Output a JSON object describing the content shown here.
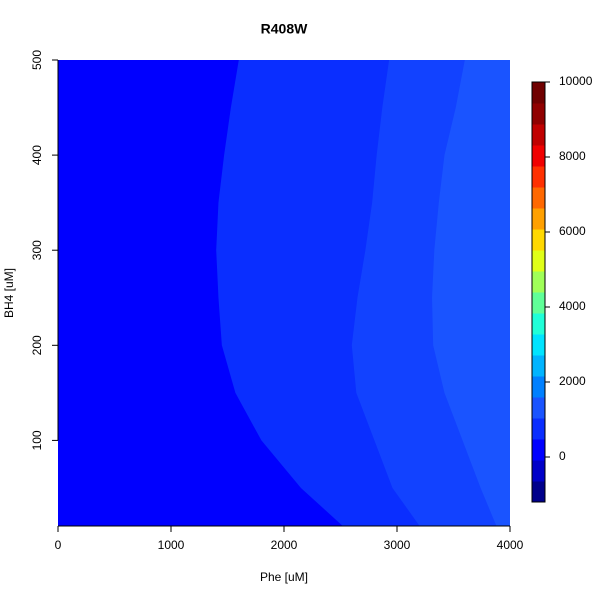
{
  "chart_data": {
    "type": "contour",
    "title": "R408W",
    "xlabel": "Phe [uM]",
    "ylabel": "BH4 [uM]",
    "xlim": [
      0,
      4000
    ],
    "ylim": [
      10,
      500
    ],
    "xticks": [
      0,
      1000,
      2000,
      3000,
      4000
    ],
    "yticks": [
      100,
      200,
      300,
      400,
      500
    ],
    "base_color": "#0000ff",
    "series": [
      {
        "color": "#0a2eff",
        "y": [
          500,
          450,
          400,
          350,
          300,
          250,
          200,
          150,
          100,
          50,
          10
        ],
        "x": [
          1600,
          1530,
          1470,
          1420,
          1400,
          1420,
          1450,
          1570,
          1800,
          2150,
          2520
        ]
      },
      {
        "color": "#1242ff",
        "y": [
          500,
          450,
          400,
          350,
          300,
          250,
          200,
          150,
          100,
          50,
          10
        ],
        "x": [
          2930,
          2870,
          2820,
          2780,
          2720,
          2650,
          2600,
          2640,
          2800,
          2960,
          3200
        ]
      },
      {
        "color": "#1a54ff",
        "y": [
          500,
          450,
          400,
          350,
          300,
          250,
          200,
          150,
          100,
          50,
          10
        ],
        "x": [
          3600,
          3520,
          3420,
          3370,
          3330,
          3310,
          3320,
          3420,
          3580,
          3740,
          3880
        ]
      }
    ],
    "zlim": [
      -1200,
      10000
    ],
    "zticks": [
      0,
      2000,
      4000,
      6000,
      8000,
      10000
    ],
    "colorbar_colors": [
      "#00008b",
      "#0000c8",
      "#0000ff",
      "#0a2eff",
      "#1a54ff",
      "#0080ff",
      "#00b4ff",
      "#00e4ff",
      "#20ffd8",
      "#60ff98",
      "#a0ff58",
      "#e0ff18",
      "#ffd800",
      "#ffa000",
      "#ff6800",
      "#ff3000",
      "#f00000",
      "#c00000",
      "#900000",
      "#700000"
    ]
  }
}
